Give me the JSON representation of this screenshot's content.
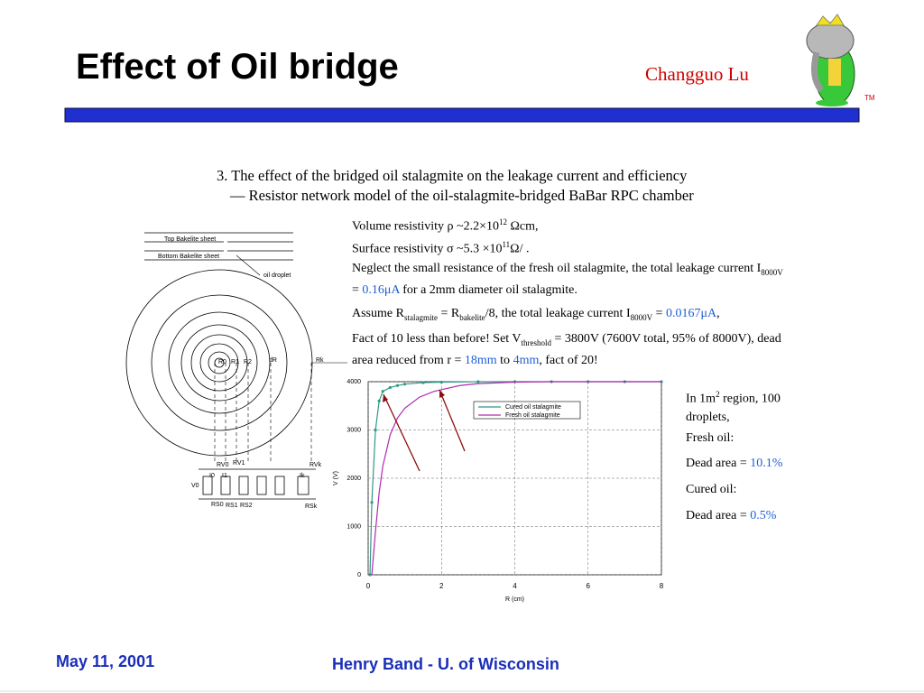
{
  "header": {
    "title": "Effect of Oil bridge",
    "author": "Changguo Lu",
    "trademark": "TM"
  },
  "heading": [
    "3. The effect of the bridged oil stalagmite on the leakage current and efficiency",
    "— Resistor network model of the oil-stalagmite-bridged BaBar RPC chamber"
  ],
  "paragraphs": [
    [
      "Volume resistivity ρ ~2.2×10",
      {
        "text": "12",
        "style": "sup"
      },
      " Ωcm,"
    ],
    [
      "Surface resistivity σ ~5.3 ×10",
      {
        "text": "11",
        "style": "sup"
      },
      "Ω/   ."
    ],
    [
      "Neglect the small resistance of the fresh oil stalagmite, the total leakage current I",
      {
        "text": "8000V",
        "style": "sub"
      },
      " = ",
      {
        "text": "0.16μA",
        "style": "blue"
      },
      " for a 2mm diameter oil stalagmite."
    ],
    [
      "Assume R",
      {
        "text": "stalagmite",
        "style": "sub"
      },
      " = R",
      {
        "text": "bakelite",
        "style": "sub"
      },
      "/8, the total leakage current I",
      {
        "text": "8000V",
        "style": "sub"
      },
      " = ",
      {
        "text": "0.0167μA",
        "style": "blue"
      },
      ","
    ],
    [
      "Fact of 10 less than before! Set V",
      {
        "text": "threshold",
        "style": "sub"
      },
      " = 3800V (7600V total, 95% of 8000V),  dead area reduced from r = ",
      {
        "text": "18mm",
        "style": "blue"
      },
      " to ",
      {
        "text": "4mm",
        "style": "blue"
      },
      ", fact of 20!"
    ]
  ],
  "notes": [
    [
      "In 1m",
      {
        "text": "2",
        "style": "sup"
      },
      " region, 100 droplets,"
    ],
    [
      "Fresh oil:"
    ],
    [
      "Dead area = ",
      {
        "text": "10.1%",
        "style": "blue"
      }
    ],
    [
      "Cured oil:"
    ],
    [
      "Dead area = ",
      {
        "text": "0.5%",
        "style": "blue"
      }
    ]
  ],
  "diagram": {
    "labels": [
      "Top Bakelite sheet",
      "Bottom Bakelite sheet",
      "oil droplet",
      "R0",
      "R1",
      "R2",
      "dR",
      "Rk",
      "RV0",
      "RV1",
      "RVk",
      "I0",
      "I1",
      "Ik",
      "V0",
      "RS0",
      "RS1",
      "RS2",
      "RSk"
    ]
  },
  "chart_data": {
    "type": "line",
    "xlabel": "R (cm)",
    "ylabel": "V (V)",
    "xlim": [
      0,
      8
    ],
    "xticks": [
      0,
      2,
      4,
      6,
      8
    ],
    "ylim": [
      0,
      4000
    ],
    "yticks": [
      0,
      1000,
      2000,
      3000,
      4000
    ],
    "grid": true,
    "series": [
      {
        "name": "Cured oil stalagmite",
        "color": "#2e9a84",
        "markers": true,
        "x": [
          0.05,
          0.1,
          0.2,
          0.3,
          0.4,
          0.6,
          0.8,
          1,
          1.5,
          2,
          3,
          4,
          5,
          6,
          7,
          8
        ],
        "values": [
          0,
          1500,
          3000,
          3600,
          3800,
          3880,
          3920,
          3950,
          3980,
          3990,
          4000,
          4000,
          4000,
          4000,
          4000,
          4000
        ]
      },
      {
        "name": "Fresh oil stalagmite",
        "color": "#b02ab0",
        "markers": false,
        "x": [
          0.1,
          0.2,
          0.3,
          0.4,
          0.6,
          0.8,
          1,
          1.4,
          1.8,
          2.5,
          3,
          4,
          5,
          6,
          7,
          8
        ],
        "values": [
          0,
          900,
          1700,
          2250,
          2900,
          3250,
          3450,
          3680,
          3800,
          3920,
          3960,
          3990,
          4000,
          4000,
          4000,
          4000
        ]
      }
    ]
  },
  "footer": {
    "date": "May 11, 2001",
    "presenter": "Henry Band -  U. of Wisconsin"
  }
}
